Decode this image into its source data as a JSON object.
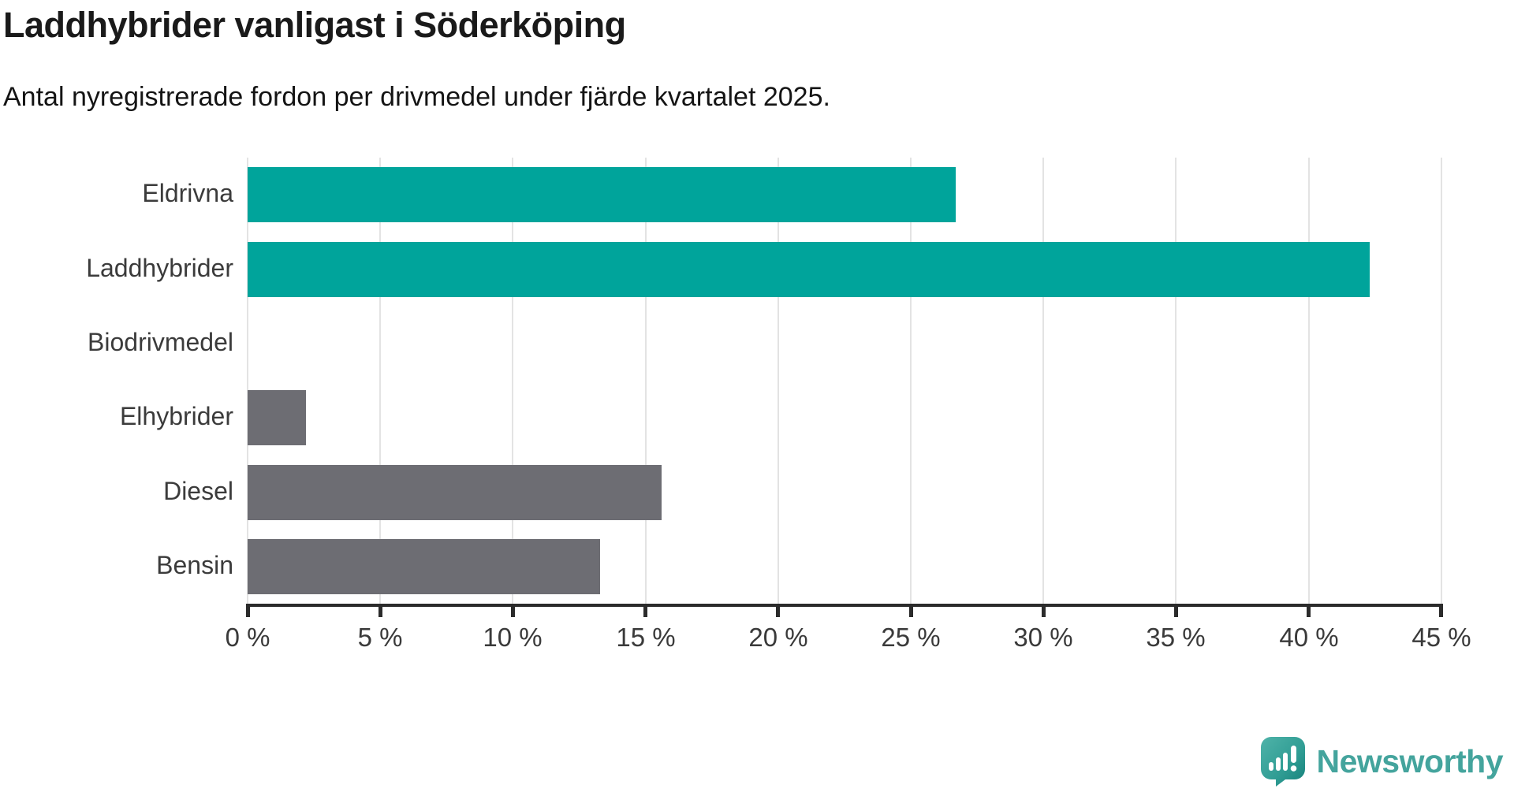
{
  "title": "Laddhybrider vanligast i Söderköping",
  "subtitle": "Antal nyregistrerade fordon per drivmedel under fjärde kvartalet 2025.",
  "chart_data": {
    "type": "bar",
    "orientation": "horizontal",
    "categories": [
      "Eldrivna",
      "Laddhybrider",
      "Biodrivmedel",
      "Elhybrider",
      "Diesel",
      "Bensin"
    ],
    "values": [
      26.7,
      42.3,
      0,
      2.2,
      15.6,
      13.3
    ],
    "unit": "%",
    "title": "Laddhybrider vanligast i Söderköping",
    "xlabel": "",
    "ylabel": "",
    "xlim": [
      0,
      45
    ],
    "tick_step": 5,
    "tick_labels": [
      "0 %",
      "5 %",
      "10 %",
      "15 %",
      "20 %",
      "25 %",
      "30 %",
      "35 %",
      "40 %",
      "45 %"
    ],
    "grid": true,
    "legend": "none",
    "bar_colors": [
      "#00a49b",
      "#00a49b",
      "#6d6d73",
      "#6d6d73",
      "#6d6d73",
      "#6d6d73"
    ],
    "highlight_color": "#00a49b",
    "default_color": "#6d6d73"
  },
  "colors": {
    "accent_teal": "#00a49b",
    "bar_gray": "#6d6d73",
    "gridline": "#e3e3e3",
    "axis": "#2b2b2b",
    "text_dark": "#1a1a1a",
    "label_gray": "#3b3b3b",
    "logo_teal": "#44a49d"
  },
  "footer": {
    "brand": "Newsworthy"
  }
}
